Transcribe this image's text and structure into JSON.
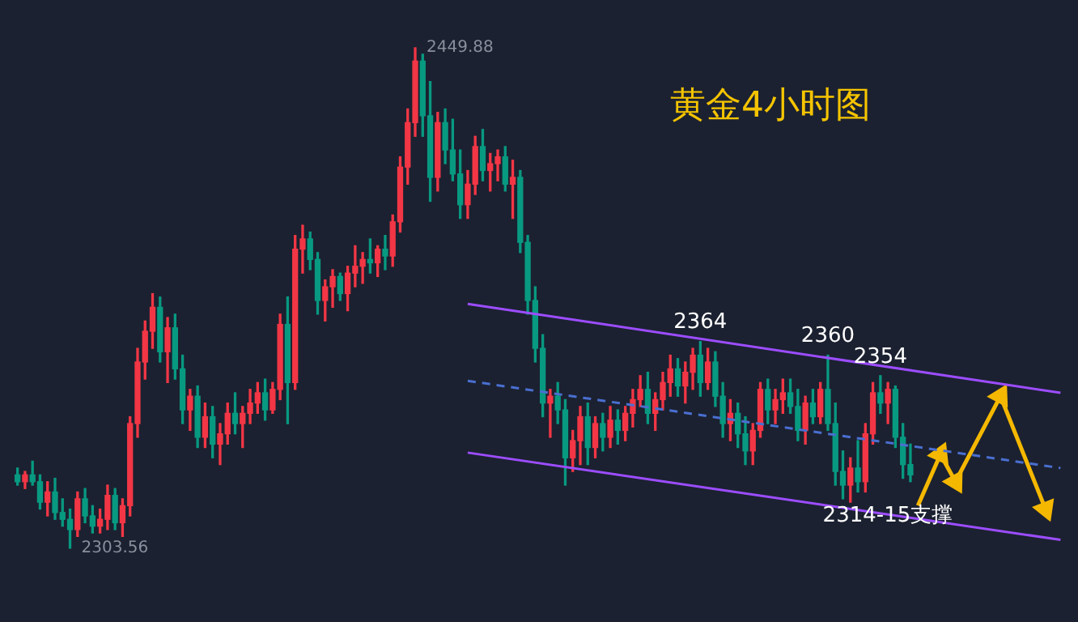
{
  "chart_data": {
    "type": "candlestick",
    "title": "黄金4小时图",
    "categories": [
      null,
      null,
      null,
      null,
      null,
      null,
      null,
      null,
      null,
      null,
      null,
      null,
      null,
      null,
      null,
      null,
      null,
      null,
      null,
      null,
      null,
      null,
      null,
      null,
      null,
      null,
      null,
      null,
      null,
      null,
      null,
      null,
      null,
      null,
      null,
      null,
      null,
      null,
      null,
      null,
      null,
      null,
      null,
      null,
      null,
      null,
      null,
      null,
      null,
      null,
      null,
      null,
      null,
      null,
      null,
      null,
      null,
      null,
      null,
      null,
      null,
      null,
      null,
      null,
      null,
      null,
      null,
      null,
      null,
      null,
      null,
      null,
      null,
      null,
      null,
      null,
      null,
      null,
      null,
      null,
      null,
      null,
      null,
      null,
      null,
      null,
      null,
      null,
      null,
      null,
      null,
      null,
      null,
      null,
      null,
      null,
      null,
      null,
      null,
      null,
      null,
      null,
      null,
      null,
      null,
      null,
      null,
      null,
      null,
      null,
      null,
      null,
      null,
      null,
      null,
      null,
      null,
      null,
      null,
      null,
      null,
      null,
      null,
      null,
      null,
      null,
      null,
      null,
      null,
      null,
      null,
      null,
      null,
      null,
      null,
      null,
      null,
      null,
      null,
      null
    ],
    "ohlc": [
      [
        2325,
        2327,
        2322,
        2323
      ],
      [
        2323,
        2326,
        2321,
        2325
      ],
      [
        2325,
        2329,
        2322,
        2323
      ],
      [
        2323,
        2325,
        2315,
        2317
      ],
      [
        2317,
        2323,
        2313,
        2320
      ],
      [
        2320,
        2324,
        2312,
        2314
      ],
      [
        2314,
        2318,
        2310,
        2312
      ],
      [
        2312,
        2315,
        2303.56,
        2309
      ],
      [
        2309,
        2320,
        2307,
        2318
      ],
      [
        2318,
        2321,
        2311,
        2313
      ],
      [
        2313,
        2316,
        2308,
        2310
      ],
      [
        2310,
        2315,
        2308,
        2312
      ],
      [
        2312,
        2322,
        2309,
        2319
      ],
      [
        2319,
        2321,
        2309,
        2311
      ],
      [
        2311,
        2318,
        2307,
        2316
      ],
      [
        2316,
        2342,
        2313,
        2340
      ],
      [
        2340,
        2362,
        2336,
        2358
      ],
      [
        2358,
        2370,
        2353,
        2367
      ],
      [
        2367,
        2378,
        2362,
        2374
      ],
      [
        2374,
        2377,
        2358,
        2361
      ],
      [
        2361,
        2371,
        2352,
        2368
      ],
      [
        2368,
        2372,
        2353,
        2356
      ],
      [
        2356,
        2360,
        2340,
        2344
      ],
      [
        2344,
        2350,
        2338,
        2348
      ],
      [
        2348,
        2351,
        2333,
        2336
      ],
      [
        2336,
        2346,
        2333,
        2342
      ],
      [
        2342,
        2345,
        2330,
        2334
      ],
      [
        2334,
        2340,
        2328,
        2337
      ],
      [
        2337,
        2346,
        2334,
        2343
      ],
      [
        2343,
        2349,
        2337,
        2340
      ],
      [
        2340,
        2345,
        2333,
        2343
      ],
      [
        2343,
        2350,
        2340,
        2346
      ],
      [
        2346,
        2352,
        2343,
        2349
      ],
      [
        2349,
        2353,
        2341,
        2344
      ],
      [
        2344,
        2352,
        2343,
        2350
      ],
      [
        2350,
        2372,
        2347,
        2369
      ],
      [
        2369,
        2377,
        2340,
        2352
      ],
      [
        2352,
        2395,
        2350,
        2391
      ],
      [
        2391,
        2398,
        2384,
        2394
      ],
      [
        2394,
        2396,
        2385,
        2388
      ],
      [
        2388,
        2390,
        2372,
        2376
      ],
      [
        2376,
        2382,
        2370,
        2380
      ],
      [
        2380,
        2385,
        2374,
        2383
      ],
      [
        2383,
        2384,
        2376,
        2378
      ],
      [
        2378,
        2386,
        2373,
        2384
      ],
      [
        2384,
        2392,
        2380,
        2386
      ],
      [
        2386,
        2390,
        2381,
        2388
      ],
      [
        2388,
        2394,
        2384,
        2387
      ],
      [
        2387,
        2392,
        2383,
        2391
      ],
      [
        2391,
        2395,
        2385,
        2389
      ],
      [
        2389,
        2401,
        2386,
        2399
      ],
      [
        2399,
        2418,
        2396,
        2415
      ],
      [
        2415,
        2432,
        2410,
        2428
      ],
      [
        2428,
        2449.88,
        2424,
        2446
      ],
      [
        2446,
        2448,
        2424,
        2430
      ],
      [
        2430,
        2440,
        2405,
        2412
      ],
      [
        2412,
        2431,
        2408,
        2428
      ],
      [
        2428,
        2432,
        2416,
        2420
      ],
      [
        2420,
        2429,
        2411,
        2413
      ],
      [
        2413,
        2420,
        2400,
        2404
      ],
      [
        2404,
        2414,
        2400,
        2410
      ],
      [
        2410,
        2424,
        2407,
        2421
      ],
      [
        2421,
        2426,
        2411,
        2414
      ],
      [
        2414,
        2419,
        2408,
        2416
      ],
      [
        2416,
        2420,
        2411,
        2418
      ],
      [
        2418,
        2421,
        2408,
        2410
      ],
      [
        2410,
        2417,
        2400,
        2412
      ],
      [
        2412,
        2414,
        2390,
        2393
      ],
      [
        2393,
        2395,
        2372,
        2376
      ],
      [
        2376,
        2380,
        2358,
        2362
      ],
      [
        2362,
        2366,
        2342,
        2346
      ],
      [
        2346,
        2350,
        2336,
        2348
      ],
      [
        2348,
        2352,
        2340,
        2344
      ],
      [
        2344,
        2347,
        2322,
        2330
      ],
      [
        2330,
        2338,
        2326,
        2335
      ],
      [
        2335,
        2345,
        2328,
        2342
      ],
      [
        2342,
        2346,
        2328,
        2333
      ],
      [
        2333,
        2342,
        2330,
        2340
      ],
      [
        2340,
        2343,
        2332,
        2336
      ],
      [
        2336,
        2345,
        2333,
        2341
      ],
      [
        2341,
        2344,
        2334,
        2338
      ],
      [
        2338,
        2345,
        2335,
        2343
      ],
      [
        2343,
        2350,
        2339,
        2347
      ],
      [
        2347,
        2354,
        2345,
        2350
      ],
      [
        2350,
        2355,
        2340,
        2343
      ],
      [
        2343,
        2349,
        2338,
        2347
      ],
      [
        2347,
        2355,
        2344,
        2352
      ],
      [
        2352,
        2360,
        2348,
        2356
      ],
      [
        2356,
        2359,
        2348,
        2351
      ],
      [
        2351,
        2358,
        2346,
        2355
      ],
      [
        2355,
        2362,
        2350,
        2360
      ],
      [
        2360,
        2364,
        2348,
        2352
      ],
      [
        2352,
        2362,
        2350,
        2358
      ],
      [
        2358,
        2361,
        2345,
        2348
      ],
      [
        2348,
        2352,
        2336,
        2340
      ],
      [
        2340,
        2347,
        2335,
        2343
      ],
      [
        2343,
        2346,
        2333,
        2337
      ],
      [
        2337,
        2342,
        2328,
        2332
      ],
      [
        2332,
        2340,
        2328,
        2338
      ],
      [
        2338,
        2352,
        2336,
        2350
      ],
      [
        2350,
        2353,
        2340,
        2344
      ],
      [
        2344,
        2350,
        2340,
        2347
      ],
      [
        2347,
        2353,
        2343,
        2349
      ],
      [
        2349,
        2353,
        2343,
        2345
      ],
      [
        2345,
        2350,
        2335,
        2338
      ],
      [
        2338,
        2348,
        2334,
        2346
      ],
      [
        2346,
        2350,
        2340,
        2342
      ],
      [
        2342,
        2352,
        2340,
        2350
      ],
      [
        2350,
        2360,
        2338,
        2340
      ],
      [
        2340,
        2346,
        2322,
        2326
      ],
      [
        2326,
        2332,
        2318,
        2322
      ],
      [
        2322,
        2330,
        2317,
        2327
      ],
      [
        2327,
        2335,
        2320,
        2323
      ],
      [
        2323,
        2340,
        2320,
        2337
      ],
      [
        2337,
        2352,
        2334,
        2349
      ],
      [
        2349,
        2354,
        2343,
        2346
      ],
      [
        2346,
        2352,
        2340,
        2350
      ],
      [
        2350,
        2351,
        2333,
        2336
      ],
      [
        2336,
        2340,
        2324,
        2328
      ],
      [
        2328,
        2334,
        2323,
        2325
      ],
      null,
      null,
      null,
      null,
      null,
      null,
      null,
      null,
      null,
      null,
      null,
      null,
      null,
      null,
      null,
      null,
      null,
      null,
      null,
      null
    ],
    "series": [
      {
        "type": "line",
        "color": "#9c4dff",
        "line_style": "solid",
        "values": [
          null,
          null,
          null,
          null,
          null,
          null,
          null,
          null,
          null,
          null,
          null,
          null,
          null,
          null,
          null,
          null,
          null,
          null,
          null,
          null,
          null,
          null,
          null,
          null,
          null,
          null,
          null,
          null,
          null,
          null,
          null,
          null,
          null,
          null,
          null,
          null,
          null,
          null,
          null,
          null,
          null,
          null,
          null,
          null,
          null,
          null,
          null,
          null,
          null,
          null,
          null,
          null,
          null,
          null,
          null,
          null,
          null,
          null,
          null,
          null,
          2375,
          null,
          null,
          null,
          null,
          null,
          null,
          null,
          null,
          null,
          null,
          null,
          null,
          null,
          null,
          null,
          null,
          null,
          null,
          null,
          null,
          null,
          null,
          null,
          null,
          null,
          null,
          null,
          null,
          null,
          null,
          null,
          null,
          null,
          null,
          null,
          null,
          null,
          null,
          null,
          null,
          null,
          null,
          null,
          null,
          null,
          null,
          null,
          null,
          null,
          null,
          null,
          null,
          null,
          null,
          null,
          null,
          null,
          null,
          null,
          null,
          null,
          null,
          null,
          null,
          null,
          null,
          null,
          null,
          null,
          null,
          null,
          null,
          null,
          null,
          null,
          null,
          null,
          null,
          2349
        ]
      },
      {
        "type": "line",
        "color": "#4a6fd1",
        "line_style": "dashed",
        "values": [
          null,
          null,
          null,
          null,
          null,
          null,
          null,
          null,
          null,
          null,
          null,
          null,
          null,
          null,
          null,
          null,
          null,
          null,
          null,
          null,
          null,
          null,
          null,
          null,
          null,
          null,
          null,
          null,
          null,
          null,
          null,
          null,
          null,
          null,
          null,
          null,
          null,
          null,
          null,
          null,
          null,
          null,
          null,
          null,
          null,
          null,
          null,
          null,
          null,
          null,
          null,
          null,
          null,
          null,
          null,
          null,
          null,
          null,
          null,
          null,
          2352.5,
          null,
          null,
          null,
          null,
          null,
          null,
          null,
          null,
          null,
          null,
          null,
          null,
          null,
          null,
          null,
          null,
          null,
          null,
          null,
          null,
          null,
          null,
          null,
          null,
          null,
          null,
          null,
          null,
          null,
          null,
          null,
          null,
          null,
          null,
          null,
          null,
          null,
          null,
          null,
          null,
          null,
          null,
          null,
          null,
          null,
          null,
          null,
          null,
          null,
          null,
          null,
          null,
          null,
          null,
          null,
          null,
          null,
          null,
          null,
          null,
          null,
          null,
          null,
          null,
          null,
          null,
          null,
          null,
          null,
          null,
          null,
          null,
          null,
          null,
          null,
          null,
          null,
          null,
          2327
        ]
      },
      {
        "type": "line",
        "color": "#9c4dff",
        "line_style": "solid",
        "values": [
          null,
          null,
          null,
          null,
          null,
          null,
          null,
          null,
          null,
          null,
          null,
          null,
          null,
          null,
          null,
          null,
          null,
          null,
          null,
          null,
          null,
          null,
          null,
          null,
          null,
          null,
          null,
          null,
          null,
          null,
          null,
          null,
          null,
          null,
          null,
          null,
          null,
          null,
          null,
          null,
          null,
          null,
          null,
          null,
          null,
          null,
          null,
          null,
          null,
          null,
          null,
          null,
          null,
          null,
          null,
          null,
          null,
          null,
          null,
          null,
          2331.5,
          null,
          null,
          null,
          null,
          null,
          null,
          null,
          null,
          null,
          null,
          null,
          null,
          null,
          null,
          null,
          null,
          null,
          null,
          null,
          null,
          null,
          null,
          null,
          null,
          null,
          null,
          null,
          null,
          null,
          null,
          null,
          null,
          null,
          null,
          null,
          null,
          null,
          null,
          null,
          null,
          null,
          null,
          null,
          null,
          null,
          null,
          null,
          null,
          null,
          null,
          null,
          null,
          null,
          null,
          null,
          null,
          null,
          null,
          null,
          null,
          null,
          null,
          null,
          null,
          null,
          null,
          null,
          null,
          null,
          null,
          null,
          null,
          null,
          null,
          null,
          null,
          null,
          null,
          2306
        ]
      },
      {
        "type": "line",
        "color": "#f5b800",
        "line_style": "solid",
        "marker": "triangle",
        "values": [
          null,
          null,
          null,
          null,
          null,
          null,
          null,
          null,
          null,
          null,
          null,
          null,
          null,
          null,
          null,
          null,
          null,
          null,
          null,
          null,
          null,
          null,
          null,
          null,
          null,
          null,
          null,
          null,
          null,
          null,
          null,
          null,
          null,
          null,
          null,
          null,
          null,
          null,
          null,
          null,
          null,
          null,
          null,
          null,
          null,
          null,
          null,
          null,
          null,
          null,
          null,
          null,
          null,
          null,
          null,
          null,
          null,
          null,
          null,
          null,
          null,
          null,
          null,
          null,
          null,
          null,
          null,
          null,
          null,
          null,
          null,
          null,
          null,
          null,
          null,
          null,
          null,
          null,
          null,
          null,
          null,
          null,
          null,
          null,
          null,
          null,
          null,
          null,
          null,
          null,
          null,
          null,
          null,
          null,
          null,
          null,
          null,
          null,
          null,
          null,
          null,
          null,
          null,
          null,
          null,
          null,
          null,
          null,
          null,
          null,
          null,
          null,
          null,
          null,
          null,
          null,
          null,
          null,
          null,
          null,
          2316,
          null,
          null,
          2331,
          null,
          2323,
          null,
          null,
          null,
          null,
          null,
          2348,
          null,
          null,
          null,
          null,
          null,
          2315,
          null,
          null
        ]
      }
    ],
    "marker": "none",
    "legend": false,
    "annotations": [
      "2449.88",
      "2303.56",
      {
        "text": "2364",
        "y": 2364
      },
      {
        "text": "2360",
        "y": 2360
      },
      {
        "text": "2354",
        "y": 2354
      },
      {
        "text": "2314-15支撑",
        "y": 2314
      }
    ]
  }
}
